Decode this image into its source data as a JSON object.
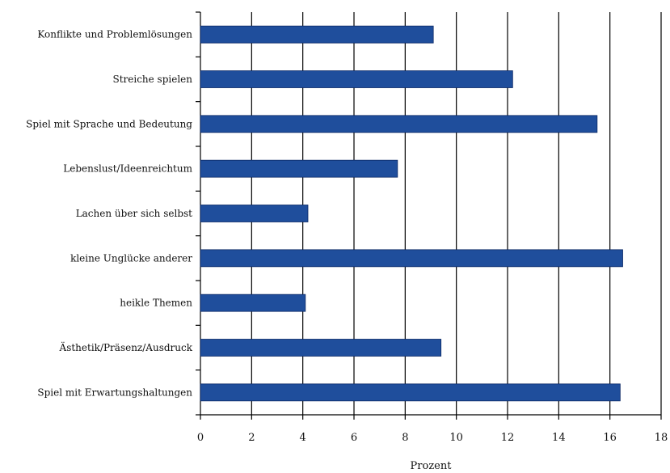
{
  "chart_data": {
    "type": "bar",
    "orientation": "horizontal",
    "categories": [
      "Konflikte und Problemlösungen",
      "Streiche spielen",
      "Spiel mit Sprache und Bedeutung",
      "Lebenslust/Ideenreichtum",
      "Lachen über sich selbst",
      "kleine Unglücke anderer",
      "heikle Themen",
      "Ästhetik/Präsenz/Ausdruck",
      "Spiel mit Erwartungshaltungen"
    ],
    "values": [
      9.1,
      12.2,
      15.5,
      7.7,
      4.2,
      16.5,
      4.1,
      9.4,
      16.4
    ],
    "xlabel": "Prozent",
    "ylabel": "",
    "xlim": [
      0,
      18
    ],
    "xticks": [
      0,
      2,
      4,
      6,
      8,
      10,
      12,
      14,
      16,
      18
    ],
    "grid": "vertical",
    "bar_color": "#1f4e9c"
  }
}
